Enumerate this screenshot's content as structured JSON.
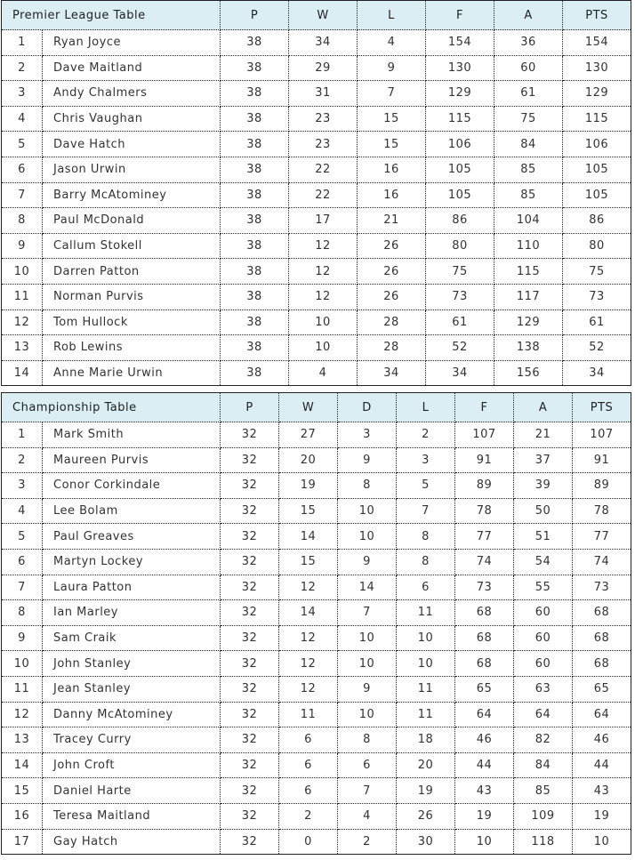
{
  "premier": {
    "title": "Premier League Table",
    "columns": [
      "P",
      "W",
      "L",
      "F",
      "A",
      "PTS"
    ],
    "rows": [
      [
        "1",
        "Ryan Joyce",
        "38",
        "34",
        "4",
        "154",
        "36",
        "154"
      ],
      [
        "2",
        "Dave Maitland",
        "38",
        "29",
        "9",
        "130",
        "60",
        "130"
      ],
      [
        "3",
        "Andy Chalmers",
        "38",
        "31",
        "7",
        "129",
        "61",
        "129"
      ],
      [
        "4",
        "Chris Vaughan",
        "38",
        "23",
        "15",
        "115",
        "75",
        "115"
      ],
      [
        "5",
        "Dave Hatch",
        "38",
        "23",
        "15",
        "106",
        "84",
        "106"
      ],
      [
        "6",
        "Jason Urwin",
        "38",
        "22",
        "16",
        "105",
        "85",
        "105"
      ],
      [
        "7",
        "Barry McAtominey",
        "38",
        "22",
        "16",
        "105",
        "85",
        "105"
      ],
      [
        "8",
        "Paul McDonald",
        "38",
        "17",
        "21",
        "86",
        "104",
        "86"
      ],
      [
        "9",
        "Callum Stokell",
        "38",
        "12",
        "26",
        "80",
        "110",
        "80"
      ],
      [
        "10",
        "Darren Patton",
        "38",
        "12",
        "26",
        "75",
        "115",
        "75"
      ],
      [
        "11",
        "Norman Purvis",
        "38",
        "12",
        "26",
        "73",
        "117",
        "73"
      ],
      [
        "12",
        "Tom Hullock",
        "38",
        "10",
        "28",
        "61",
        "129",
        "61"
      ],
      [
        "13",
        "Rob Lewins",
        "38",
        "10",
        "28",
        "52",
        "138",
        "52"
      ],
      [
        "14",
        "Anne Marie Urwin",
        "38",
        "4",
        "34",
        "34",
        "156",
        "34"
      ]
    ]
  },
  "championship": {
    "title": "Championship Table",
    "columns": [
      "P",
      "W",
      "D",
      "L",
      "F",
      "A",
      "PTS"
    ],
    "rows": [
      [
        "1",
        "Mark Smith",
        "32",
        "27",
        "3",
        "2",
        "107",
        "21",
        "107"
      ],
      [
        "2",
        "Maureen Purvis",
        "32",
        "20",
        "9",
        "3",
        "91",
        "37",
        "91"
      ],
      [
        "3",
        "Conor Corkindale",
        "32",
        "19",
        "8",
        "5",
        "89",
        "39",
        "89"
      ],
      [
        "4",
        "Lee Bolam",
        "32",
        "15",
        "10",
        "7",
        "78",
        "50",
        "78"
      ],
      [
        "5",
        "Paul Greaves",
        "32",
        "14",
        "10",
        "8",
        "77",
        "51",
        "77"
      ],
      [
        "6",
        "Martyn Lockey",
        "32",
        "15",
        "9",
        "8",
        "74",
        "54",
        "74"
      ],
      [
        "7",
        "Laura Patton",
        "32",
        "12",
        "14",
        "6",
        "73",
        "55",
        "73"
      ],
      [
        "8",
        "Ian Marley",
        "32",
        "14",
        "7",
        "11",
        "68",
        "60",
        "68"
      ],
      [
        "9",
        "Sam Craik",
        "32",
        "12",
        "10",
        "10",
        "68",
        "60",
        "68"
      ],
      [
        "10",
        "John Stanley",
        "32",
        "12",
        "10",
        "10",
        "68",
        "60",
        "68"
      ],
      [
        "11",
        "Jean Stanley",
        "32",
        "12",
        "9",
        "11",
        "65",
        "63",
        "65"
      ],
      [
        "12",
        "Danny McAtominey",
        "32",
        "11",
        "10",
        "11",
        "64",
        "64",
        "64"
      ],
      [
        "13",
        "Tracey Curry",
        "32",
        "6",
        "8",
        "18",
        "46",
        "82",
        "46"
      ],
      [
        "14",
        "John Croft",
        "32",
        "6",
        "6",
        "20",
        "44",
        "84",
        "44"
      ],
      [
        "15",
        "Daniel Harte",
        "32",
        "6",
        "7",
        "19",
        "43",
        "85",
        "43"
      ],
      [
        "16",
        "Teresa Maitland",
        "32",
        "2",
        "4",
        "26",
        "19",
        "109",
        "19"
      ],
      [
        "17",
        "Gay Hatch",
        "32",
        "0",
        "2",
        "30",
        "10",
        "118",
        "10"
      ]
    ]
  },
  "colors": {
    "header_bg": "#daeef3",
    "text": "#333333"
  }
}
